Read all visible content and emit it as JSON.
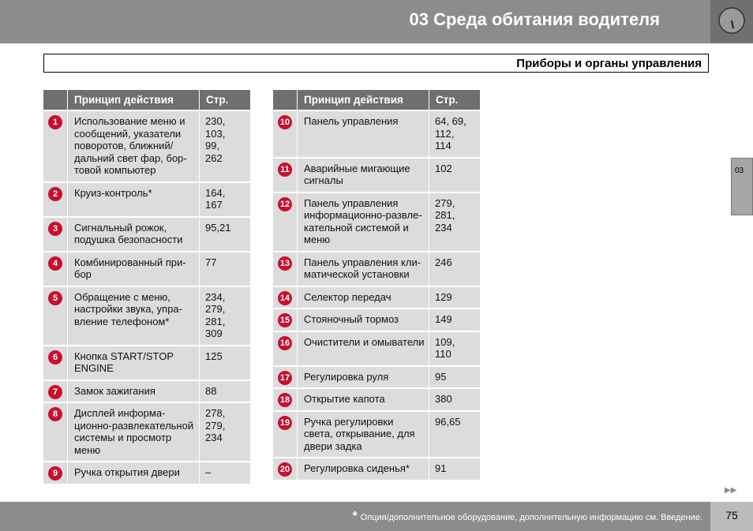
{
  "header": {
    "title": "03 Среда обитания водителя"
  },
  "section": "Приборы и органы управления",
  "side_tab": "03",
  "tables": [
    {
      "columns": [
        "Принцип действия",
        "Стр."
      ],
      "rows": [
        {
          "num": 1,
          "text": "Использование меню и\nсообщений, указатели\nповоротов, ближний/\nдальний свет фар, бор-\nтовой компьютер",
          "pages": "230,\n103,\n99,\n262"
        },
        {
          "num": 2,
          "text": "Круиз-контроль*",
          "pages": "164,\n167"
        },
        {
          "num": 3,
          "text": "Сигнальный рожок,\nподушка безопасности",
          "pages": "95,21"
        },
        {
          "num": 4,
          "text": "Комбинированный при-\nбор",
          "pages": "77"
        },
        {
          "num": 5,
          "text": "Обращение с меню,\nнастройки звука, упра-\nвление телефоном*",
          "pages": "234,\n279,\n281,\n309"
        },
        {
          "num": 6,
          "text": "Кнопка START/STOP\nENGINE",
          "pages": "125"
        },
        {
          "num": 7,
          "text": "Замок зажигания",
          "pages": "88"
        },
        {
          "num": 8,
          "text": "Дисплей информа-\nционно-развлекательной\nсистемы и просмотр\nменю",
          "pages": "278,\n279,\n234"
        },
        {
          "num": 9,
          "text": "Ручка открытия двери",
          "pages": "–"
        }
      ]
    },
    {
      "columns": [
        "Принцип действия",
        "Стр."
      ],
      "rows": [
        {
          "num": 10,
          "text": "Панель управления",
          "pages": "64, 69,\n112,\n114"
        },
        {
          "num": 11,
          "text": "Аварийные мигающие\nсигналы",
          "pages": "102"
        },
        {
          "num": 12,
          "text": "Панель управления\nинформационно-развле-\nкательной системой и\nменю",
          "pages": "279,\n281,\n234"
        },
        {
          "num": 13,
          "text": "Панель управления кли-\nматической установки",
          "pages": "246"
        },
        {
          "num": 14,
          "text": "Селектор передач",
          "pages": "129"
        },
        {
          "num": 15,
          "text": "Стояночный тормоз",
          "pages": "149"
        },
        {
          "num": 16,
          "text": "Очистители и омыватели",
          "pages": "109,\n110"
        },
        {
          "num": 17,
          "text": "Регулировка руля",
          "pages": "95"
        },
        {
          "num": 18,
          "text": "Открытие капота",
          "pages": "380"
        },
        {
          "num": 19,
          "text": "Ручка регулировки\nсвета, открывание, для\nдвери задка",
          "pages": "96,65"
        },
        {
          "num": 20,
          "text": "Регулировка сиденья*",
          "pages": "91"
        }
      ]
    }
  ],
  "footer": {
    "mark": "*",
    "note": "Опция/дополнительное оборудование, дополнительную информацию см. Введение.",
    "page": "75"
  }
}
